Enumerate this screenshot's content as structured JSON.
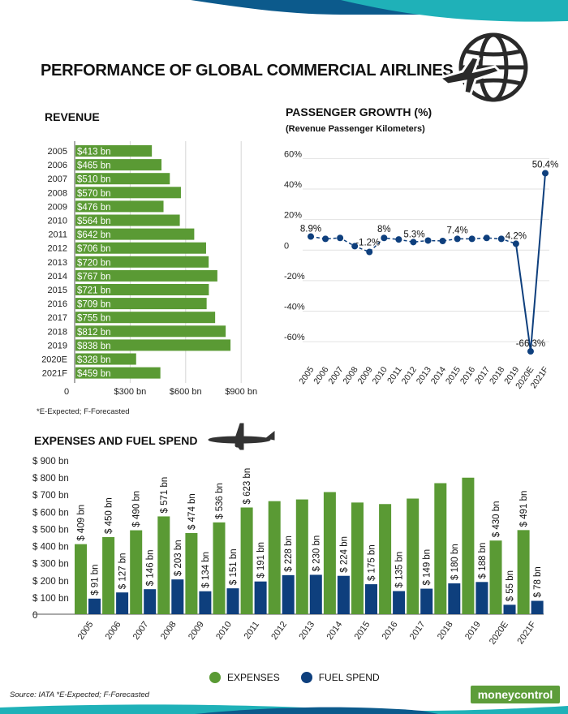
{
  "title": "PERFORMANCE OF GLOBAL COMMERCIAL AIRLINES",
  "colors": {
    "green": "#5a9a34",
    "navy": "#0e3f7d",
    "teal": "#1fb1b8",
    "accent": "#0c5a8c"
  },
  "icons": {
    "globe": "globe-airplane-icon",
    "plane": "airplane-icon"
  },
  "footnote_revenue": "*E-Expected; F-Forecasted",
  "source": "Source: IATA   *E-Expected; F-Forecasted",
  "logo_text": "moneycontrol",
  "chart_data": [
    {
      "type": "bar",
      "orientation": "horizontal",
      "title": "REVENUE",
      "categories": [
        "2005",
        "2006",
        "2007",
        "2008",
        "2009",
        "2010",
        "2011",
        "2012",
        "2013",
        "2014",
        "2015",
        "2016",
        "2017",
        "2018",
        "2019",
        "2020E",
        "2021F"
      ],
      "values": [
        413,
        465,
        510,
        570,
        476,
        564,
        642,
        706,
        720,
        767,
        721,
        709,
        755,
        812,
        838,
        328,
        459
      ],
      "data_labels": [
        "$413 bn",
        "$465 bn",
        "$510 bn",
        "$570 bn",
        "$476 bn",
        "$564 bn",
        "$642 bn",
        "$706 bn",
        "$720 bn",
        "$767 bn",
        "$721 bn",
        "$709 bn",
        "$755 bn",
        "$812 bn",
        "$838 bn",
        "$328 bn",
        "$459 bn"
      ],
      "x_ticks": [
        0,
        300,
        600,
        900
      ],
      "x_tick_labels": [
        "0",
        "$300 bn",
        "$600 bn",
        "$900 bn"
      ],
      "xlim": [
        0,
        1000
      ],
      "grid": true
    },
    {
      "type": "line",
      "title": "PASSENGER GROWTH (%)",
      "subtitle": "(Revenue Passenger Kilometers)",
      "x": [
        "2005",
        "2006",
        "2007",
        "2008",
        "2009",
        "2010",
        "2011",
        "2012",
        "2013",
        "2014",
        "2015",
        "2016",
        "2017",
        "2018",
        "2019",
        "2020E",
        "2021F"
      ],
      "values": [
        8.9,
        7.4,
        8.0,
        2.6,
        -1.2,
        8.0,
        7.0,
        5.3,
        6.3,
        6.0,
        7.4,
        7.4,
        8.0,
        7.4,
        4.2,
        -66.3,
        50.4
      ],
      "point_labels": [
        {
          "index": 0,
          "text": "8.9%"
        },
        {
          "index": 4,
          "text": "-1.2%"
        },
        {
          "index": 5,
          "text": "8%"
        },
        {
          "index": 7,
          "text": "5.3%"
        },
        {
          "index": 10,
          "text": "7.4%"
        },
        {
          "index": 14,
          "text": "4.2%"
        },
        {
          "index": 15,
          "text": "-66.3%"
        },
        {
          "index": 16,
          "text": "50.4%"
        }
      ],
      "y_ticks": [
        60,
        40,
        20,
        0,
        -20,
        -40,
        -60
      ],
      "y_tick_labels": [
        "60%",
        "40%",
        "20%",
        "0",
        "-20%",
        "-40%",
        "-60%"
      ],
      "ylim": [
        -70,
        65
      ],
      "grid": true
    },
    {
      "type": "bar",
      "title": "EXPENSES AND FUEL SPEND",
      "categories": [
        "2005",
        "2006",
        "2007",
        "2008",
        "2009",
        "2010",
        "2011",
        "2012",
        "2013",
        "2014",
        "2015",
        "2016",
        "2017",
        "2018",
        "2019",
        "2020E",
        "2021F"
      ],
      "series": [
        {
          "name": "EXPENSES",
          "values": [
            409,
            450,
            490,
            571,
            474,
            536,
            623,
            660,
            670,
            713,
            652,
            643,
            675,
            765,
            797,
            430,
            491
          ],
          "labels": [
            "$ 409 bn",
            "$ 450 bn",
            "$ 490 bn",
            "$ 571 bn",
            "$ 474 bn",
            "$ 536 bn",
            "$ 623 bn",
            "",
            "",
            "",
            "",
            "",
            "",
            "",
            "",
            "$ 430 bn",
            "$ 491 bn"
          ]
        },
        {
          "name": "FUEL SPEND",
          "values": [
            91,
            127,
            146,
            203,
            134,
            151,
            191,
            228,
            230,
            224,
            175,
            135,
            149,
            180,
            188,
            55,
            78
          ],
          "labels": [
            "$ 91 bn",
            "$ 127 bn",
            "$ 146 bn",
            "$ 203 bn",
            "$ 134 bn",
            "$ 151 bn",
            "$ 191 bn",
            "$ 228 bn",
            "$ 230 bn",
            "$ 224 bn",
            "$ 175 bn",
            "$ 135 bn",
            "$ 149 bn",
            "$ 180 bn",
            "$ 188 bn",
            "$ 55 bn",
            "$ 78 bn"
          ]
        }
      ],
      "y_ticks": [
        0,
        100,
        200,
        300,
        400,
        500,
        600,
        700,
        800,
        900
      ],
      "y_tick_labels": [
        "0",
        "$ 100 bn",
        "$ 200 bn",
        "$ 300 bn",
        "$ 400 bn",
        "$ 500 bn",
        "$ 600 bn",
        "$ 700 bn",
        "$ 800 bn",
        "$ 900 bn"
      ],
      "ylim": [
        0,
        900
      ],
      "legend": "bottom-center"
    }
  ]
}
